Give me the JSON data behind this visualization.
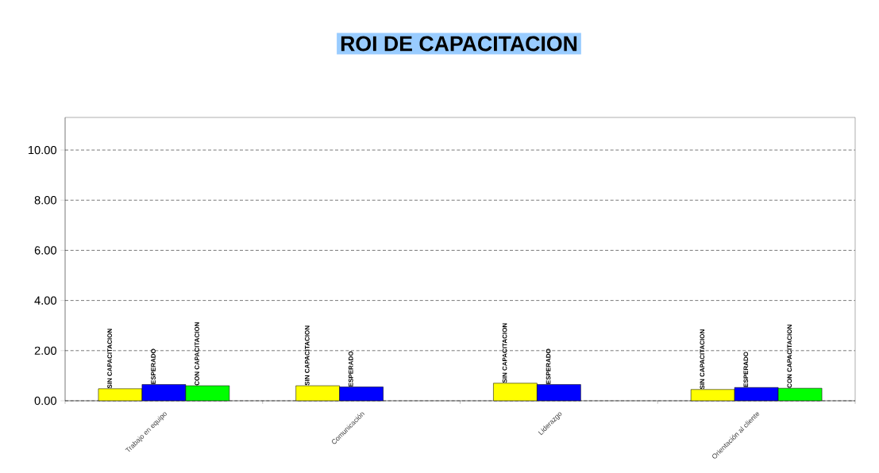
{
  "chart_data": {
    "type": "bar",
    "title": "ROI DE CAPACITACION",
    "categories": [
      "Trabajo en equipo",
      "Comunicación",
      "Liderazgo",
      "Orientación al cliente"
    ],
    "series": [
      {
        "name": "SIN CAPACITACION",
        "color": "#ffff00",
        "values": [
          0.48,
          0.6,
          0.7,
          0.45
        ]
      },
      {
        "name": "ESPERADO",
        "color": "#0000ff",
        "values": [
          0.65,
          0.55,
          0.65,
          0.53
        ]
      },
      {
        "name": "CON CAPACITACION",
        "color": "#00ff00",
        "values": [
          0.6,
          null,
          null,
          0.5
        ]
      }
    ],
    "ylim": [
      0,
      11.3
    ],
    "yticks": [
      {
        "value": 0,
        "label": "0.00"
      },
      {
        "value": 2,
        "label": "2.00"
      },
      {
        "value": 4,
        "label": "4.00"
      },
      {
        "value": 6,
        "label": "6.00"
      },
      {
        "value": 8,
        "label": "8.00"
      },
      {
        "value": 10,
        "label": "10.00"
      }
    ],
    "grid": "y"
  }
}
